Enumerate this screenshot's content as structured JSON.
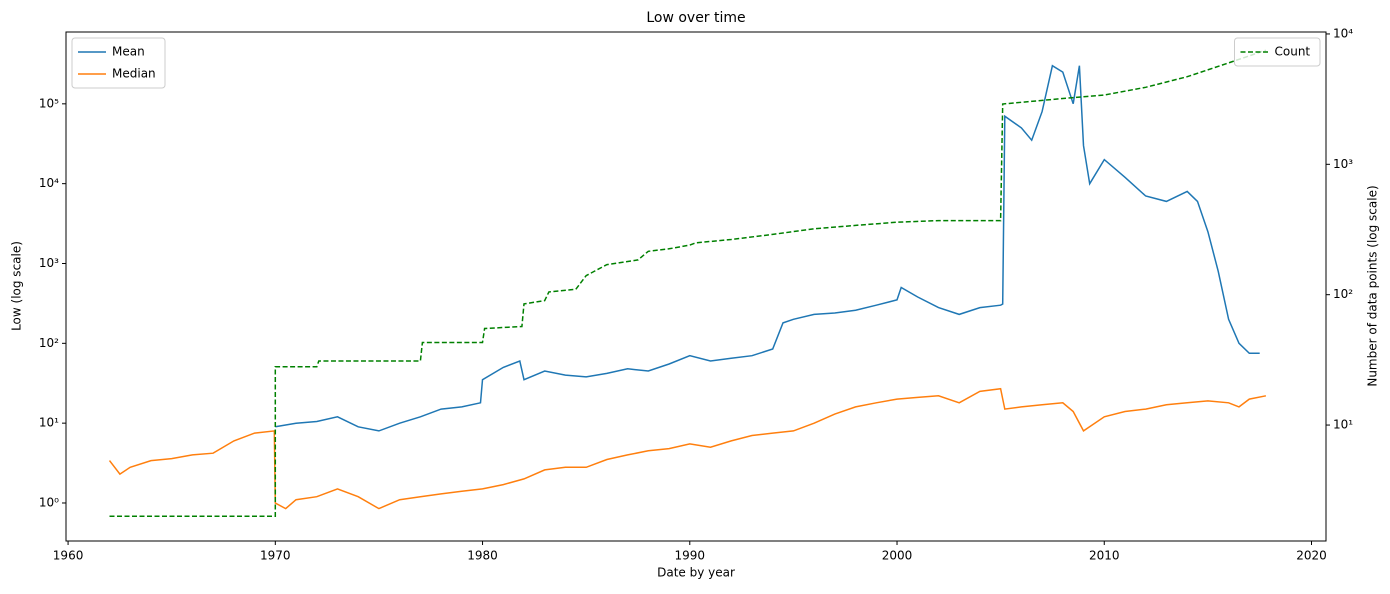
{
  "chart_data": {
    "type": "line",
    "title": "Low over time",
    "xlabel": "Date by year",
    "ylabel": "Low (log scale)",
    "y2label": "Number of data points (log scale)",
    "yscale": "log",
    "y2scale": "log",
    "xlim": [
      1959.9,
      2020.7
    ],
    "xticks": [
      1960,
      1970,
      1980,
      1990,
      2000,
      2010,
      2020
    ],
    "ylim": [
      0.334,
      794000
    ],
    "yticks": [
      {
        "value": 1,
        "label": "10⁰"
      },
      {
        "value": 10,
        "label": "10¹"
      },
      {
        "value": 100,
        "label": "10²"
      },
      {
        "value": 1000,
        "label": "10³"
      },
      {
        "value": 10000,
        "label": "10⁴"
      },
      {
        "value": 100000,
        "label": "10⁵"
      }
    ],
    "y2lim": [
      1.29,
      10350
    ],
    "y2ticks": [
      {
        "value": 10,
        "label": "10¹"
      },
      {
        "value": 100,
        "label": "10²"
      },
      {
        "value": 1000,
        "label": "10³"
      },
      {
        "value": 10000,
        "label": "10⁴"
      }
    ],
    "legend": "upper left",
    "legend2": "upper right",
    "series": [
      {
        "name": "Mean",
        "color": "#1f77b4",
        "axis": "y",
        "x": [
          1970,
          1971,
          1972,
          1973,
          1974,
          1975,
          1976,
          1977,
          1978,
          1979,
          1979.9,
          1980,
          1981,
          1981.8,
          1982,
          1983,
          1984,
          1985,
          1986,
          1987,
          1988,
          1989,
          1990,
          1991,
          1992,
          1993,
          1994,
          1994.5,
          1995,
          1996,
          1997,
          1998,
          1999,
          2000,
          2000.2,
          2001,
          2002,
          2003,
          2004,
          2005,
          2005.1,
          2005.2,
          2006,
          2006.5,
          2007,
          2007.5,
          2008,
          2008.5,
          2008.8,
          2009,
          2009.3,
          2010,
          2011,
          2012,
          2013,
          2014,
          2014.5,
          2015,
          2015.5,
          2016,
          2016.5,
          2017,
          2017.5
        ],
        "values": [
          9,
          10,
          10.5,
          12,
          9,
          8,
          10,
          12,
          15,
          16,
          18,
          35,
          50,
          60,
          35,
          45,
          40,
          38,
          42,
          48,
          45,
          55,
          70,
          60,
          65,
          70,
          85,
          180,
          200,
          230,
          240,
          260,
          300,
          350,
          500,
          380,
          280,
          230,
          280,
          300,
          310,
          70000,
          50000,
          35000,
          80000,
          300000,
          250000,
          100000,
          300000,
          30000,
          10000,
          20000,
          12000,
          7000,
          6000,
          8000,
          6000,
          2500,
          800,
          200,
          100,
          75,
          75
        ]
      },
      {
        "name": "Median",
        "color": "#ff7f0e",
        "axis": "y",
        "x": [
          1962,
          1962.5,
          1963,
          1964,
          1965,
          1966,
          1967,
          1968,
          1969,
          1969.95,
          1970,
          1970.5,
          1971,
          1972,
          1973,
          1974,
          1975,
          1976,
          1977,
          1978,
          1979,
          1980,
          1981,
          1982,
          1983,
          1984,
          1985,
          1986,
          1987,
          1988,
          1989,
          1990,
          1991,
          1992,
          1993,
          1994,
          1995,
          1996,
          1997,
          1998,
          1999,
          2000,
          2001,
          2002,
          2003,
          2004,
          2005,
          2005.2,
          2006,
          2007,
          2008,
          2008.5,
          2009,
          2010,
          2011,
          2012,
          2013,
          2014,
          2015,
          2016,
          2016.5,
          2017,
          2017.8
        ],
        "values": [
          3.4,
          2.3,
          2.8,
          3.4,
          3.6,
          4,
          4.2,
          6,
          7.5,
          8,
          1.0,
          0.85,
          1.1,
          1.2,
          1.5,
          1.2,
          0.85,
          1.1,
          1.2,
          1.3,
          1.4,
          1.5,
          1.7,
          2.0,
          2.6,
          2.8,
          2.8,
          3.5,
          4,
          4.5,
          4.8,
          5.5,
          5,
          6,
          7,
          7.5,
          8,
          10,
          13,
          16,
          18,
          20,
          21,
          22,
          18,
          25,
          27,
          15,
          16,
          17,
          18,
          14,
          8,
          12,
          14,
          15,
          17,
          18,
          19,
          18,
          16,
          20,
          22
        ]
      },
      {
        "name": "Count",
        "color": "#008000",
        "axis": "y2",
        "dash": true,
        "x": [
          1962,
          1970,
          1970,
          1972,
          1972.1,
          1977,
          1977.1,
          1980,
          1980.1,
          1981.9,
          1982,
          1983,
          1983.2,
          1984.5,
          1985,
          1986,
          1987.5,
          1988,
          1989,
          1990,
          1990.3,
          1992,
          1994,
          1996,
          1998,
          2000,
          2002,
          2005,
          2005.1,
          2008,
          2010,
          2012,
          2014,
          2016,
          2017.8
        ],
        "values": [
          2,
          2,
          28,
          28,
          31,
          31,
          43,
          43,
          55,
          57,
          85,
          90,
          105,
          110,
          140,
          170,
          185,
          215,
          225,
          240,
          250,
          265,
          290,
          320,
          340,
          360,
          370,
          370,
          2900,
          3200,
          3400,
          3900,
          4700,
          6000,
          7500
        ]
      }
    ]
  }
}
